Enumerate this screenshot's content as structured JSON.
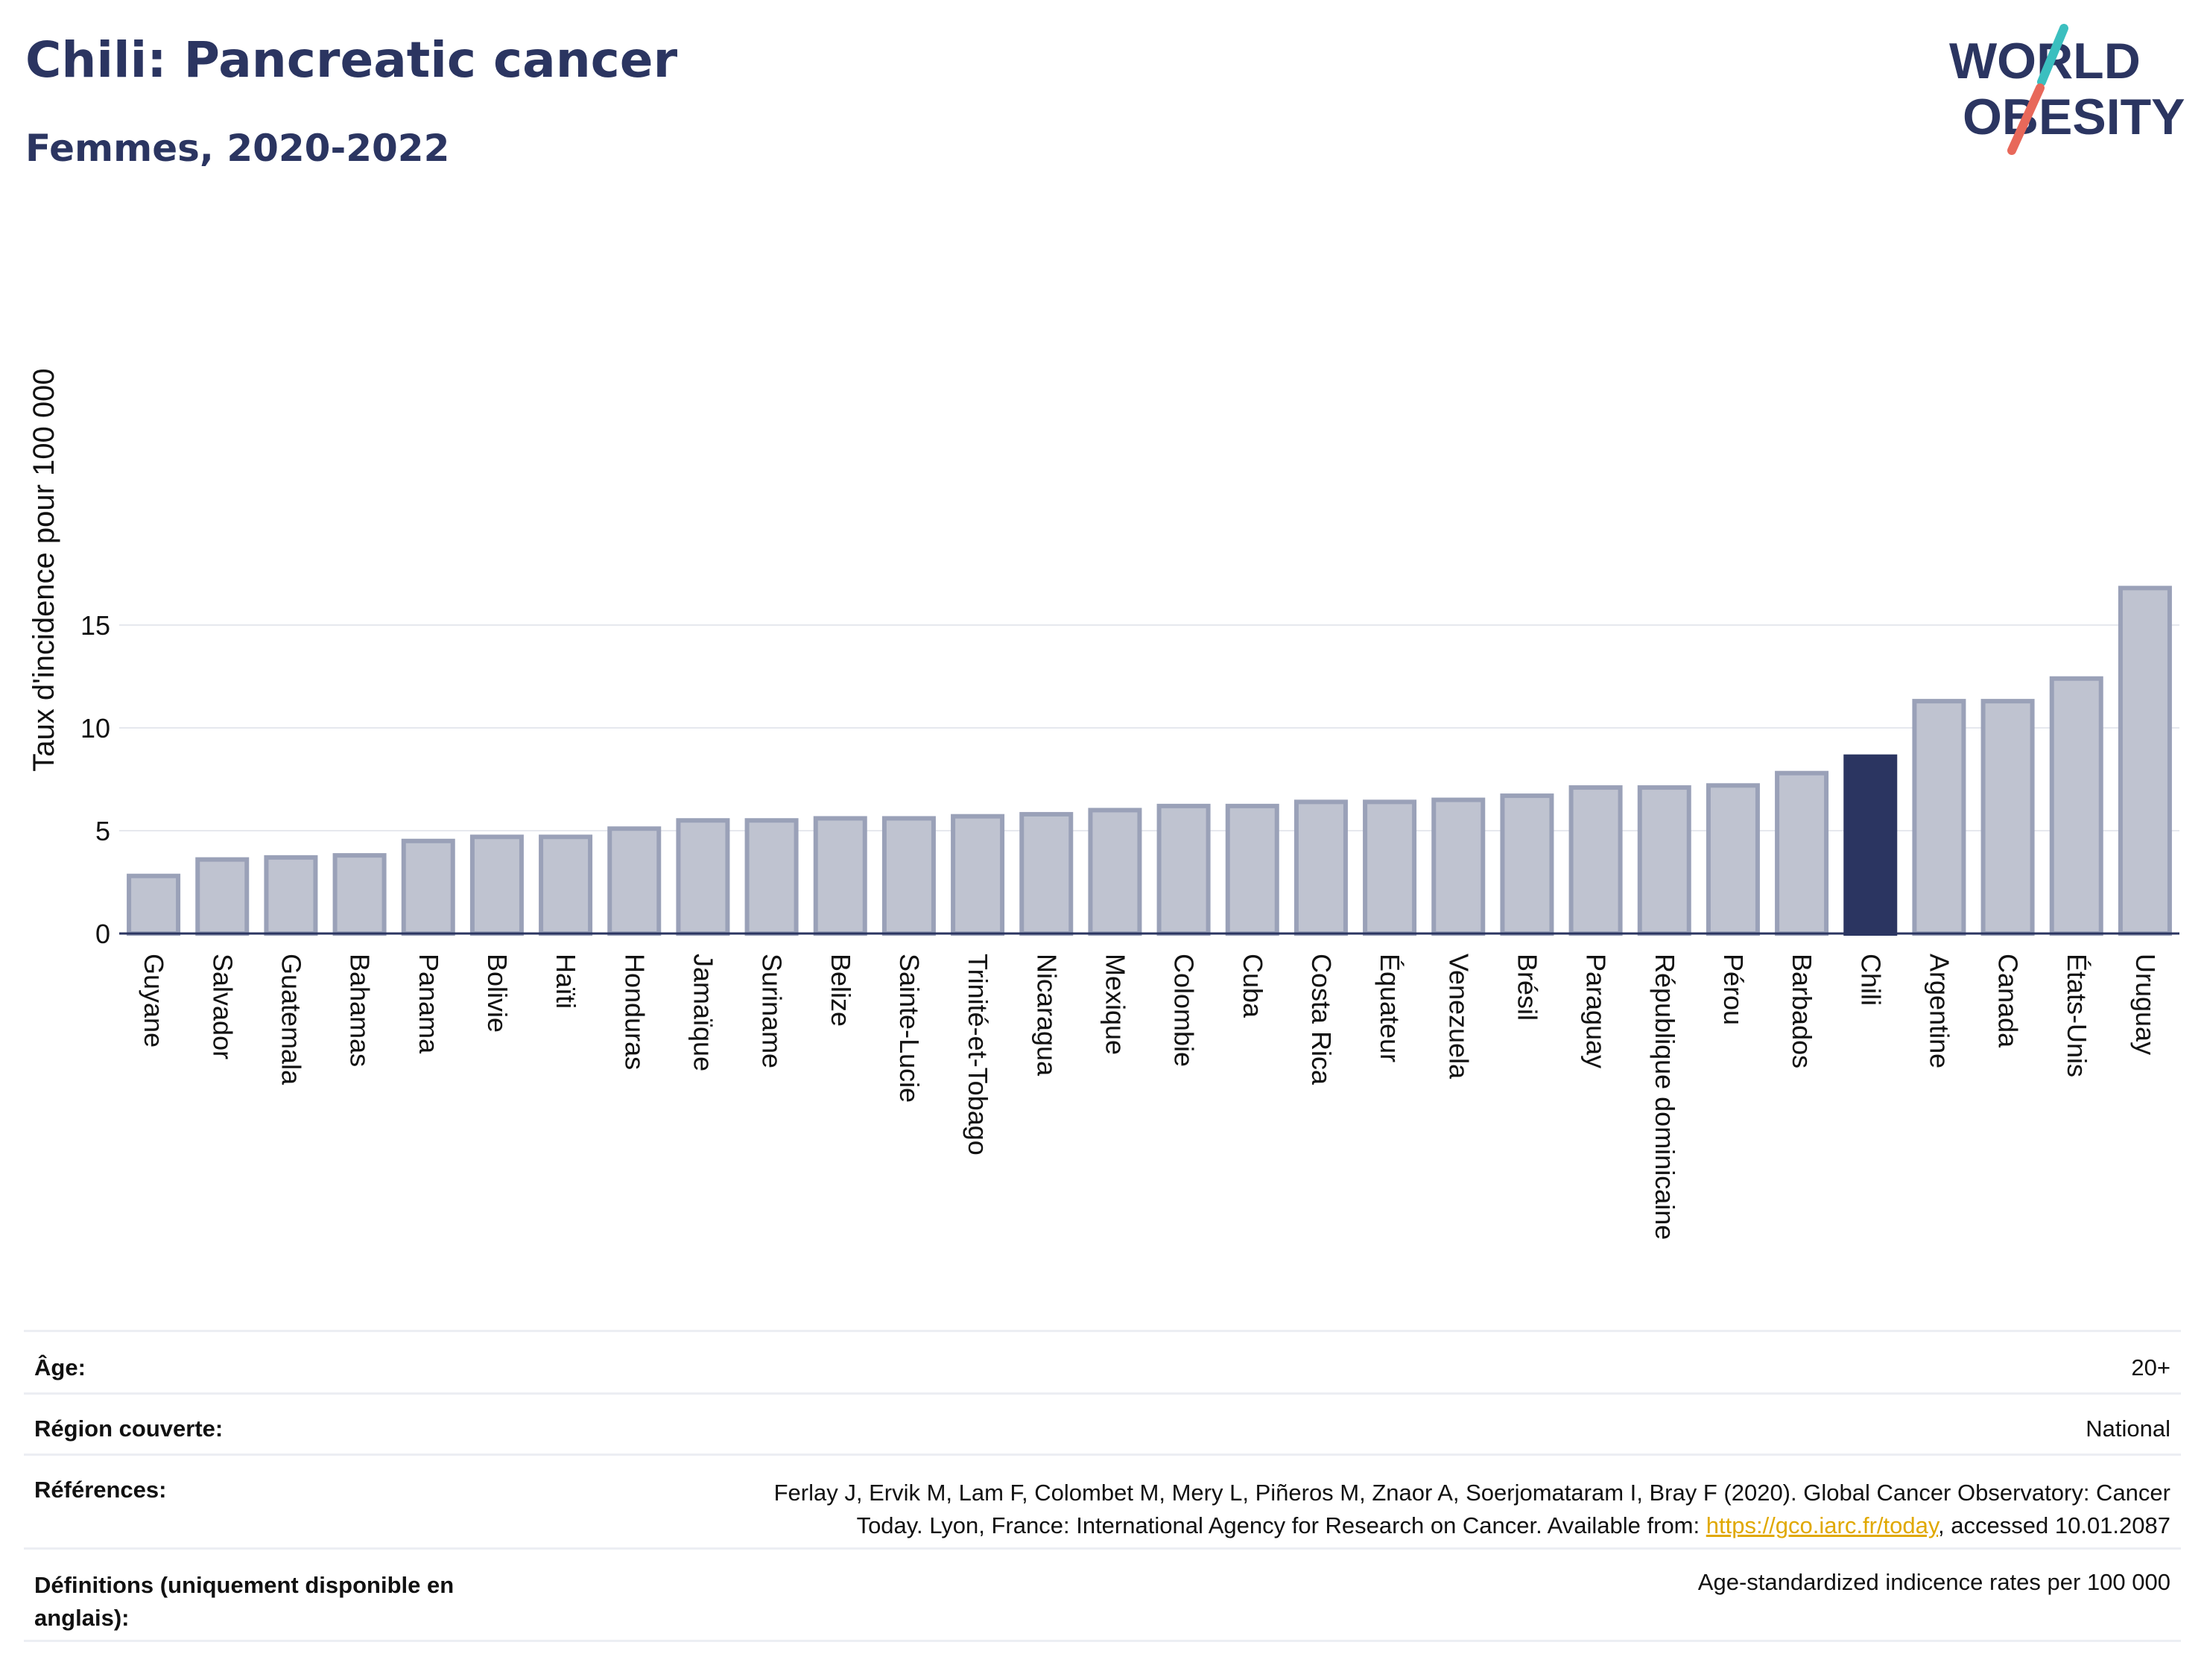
{
  "header": {
    "title": "Chili: Pancreatic cancer",
    "subtitle": "Femmes, 2020-2022",
    "logo": {
      "line1": "WORLD",
      "line2": "OBESITY"
    }
  },
  "colors": {
    "bar": "#bfc3d0",
    "bar_border": "#9aa1b8",
    "highlight": "#2b3561",
    "title": "#2b3561",
    "link": "#e0a800",
    "logo_teal": "#3bbfbf",
    "logo_red": "#e8685a"
  },
  "chart_data": {
    "type": "bar",
    "ylabel": "Taux d'incidence pour 100 000",
    "ylim": [
      0,
      17
    ],
    "yticks": [
      0,
      5,
      10,
      15
    ],
    "grid": true,
    "highlight": "Chili",
    "categories": [
      "Guyane",
      "Salvador",
      "Guatemala",
      "Bahamas",
      "Panama",
      "Bolivie",
      "Haïti",
      "Honduras",
      "Jamaïque",
      "Suriname",
      "Belize",
      "Sainte-Lucie",
      "Trinité-et-Tobago",
      "Nicaragua",
      "Mexique",
      "Colombie",
      "Cuba",
      "Costa Rica",
      "Équateur",
      "Venezuela",
      "Brésil",
      "Paraguay",
      "République dominicaine",
      "Pérou",
      "Barbados",
      "Chili",
      "Argentine",
      "Canada",
      "États-Unis",
      "Uruguay"
    ],
    "values": [
      2.8,
      3.6,
      3.7,
      3.8,
      4.5,
      4.7,
      4.7,
      5.1,
      5.5,
      5.5,
      5.6,
      5.6,
      5.7,
      5.8,
      6.0,
      6.2,
      6.2,
      6.4,
      6.4,
      6.5,
      6.7,
      7.1,
      7.1,
      7.2,
      7.8,
      8.6,
      11.3,
      11.3,
      12.4,
      16.8
    ]
  },
  "meta": {
    "age_label": "Âge:",
    "age_value": "20+",
    "region_label": "Région couverte:",
    "region_value": "National",
    "refs_label": "Références:",
    "refs_text1": "Ferlay J, Ervik M, Lam F, Colombet M, Mery L, Piñeros M, Znaor A, Soerjomataram I, Bray F (2020). Global Cancer Observatory: Cancer",
    "refs_text2": "Today. Lyon, France: International Agency for Research on Cancer. Available from: ",
    "refs_link": "https://gco.iarc.fr/today",
    "refs_text3": ", accessed 10.01.2087",
    "defs_label": "Définitions (uniquement disponible en anglais):",
    "defs_value": "Age-standardized indicence rates per 100 000"
  }
}
